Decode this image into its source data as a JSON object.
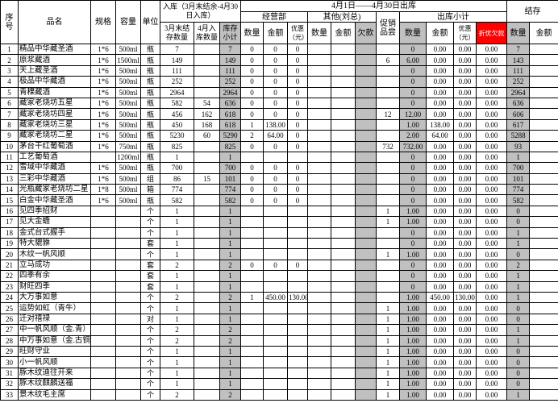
{
  "header": {
    "no": "序号",
    "name": "品名",
    "spec": "规格",
    "volume": "容量",
    "unit": "单位",
    "stock_in": "入库（3月末结余-4月30日入库）",
    "period": "4月1日——4月30日出库",
    "balance": "结存",
    "dept": "经营部",
    "other": "其他(刘总)",
    "promo": "促销品尝",
    "out_total": "出库小计",
    "march_end": "3月末结存数量",
    "april_in": "4月入库数量",
    "stock_total": "库存小计",
    "dept_qty": "数量",
    "dept_amount": "金额",
    "dept_discount": "优惠（元）",
    "other_qty": "数量",
    "other_amount": "金额",
    "debt": "欠款",
    "out_qty": "数量",
    "out_amount": "金额",
    "out_discount": "优惠（元）",
    "discount_debt": "折优欠款",
    "bal_qty": "数量",
    "bal_amount": "金额"
  },
  "table": {
    "rows": [
      [
        "1",
        "精品中华藏圣酒",
        "1*6",
        "500ml",
        "瓶",
        "7",
        null,
        "7",
        "0",
        "0",
        "0",
        null,
        null,
        null,
        null,
        "0",
        "0.00",
        "0.00",
        "0.00",
        "7",
        null
      ],
      [
        "2",
        "原浆藏酒",
        "1*6",
        "1500ml",
        "瓶",
        "149",
        null,
        "149",
        "0",
        "0",
        "0",
        null,
        null,
        null,
        "6",
        "6.00",
        "0.00",
        "0.00",
        "0.00",
        "143",
        null
      ],
      [
        "3",
        "天上藏圣酒",
        "1*6",
        "500ml",
        "瓶",
        "111",
        null,
        "111",
        "0",
        "0",
        "0",
        null,
        null,
        null,
        null,
        "0",
        "0.00",
        "0.00",
        "0.00",
        "111",
        null
      ],
      [
        "4",
        "极品中华藏酒",
        "1*6",
        "500ml",
        "瓶",
        "252",
        null,
        "252",
        "0",
        "0",
        "0",
        null,
        null,
        null,
        null,
        "0",
        "0.00",
        "0.00",
        "0.00",
        "252",
        null
      ],
      [
        "5",
        "青稞藏酒",
        "1*6",
        "500ml",
        "瓶",
        "2964",
        null,
        "2964",
        "0",
        "0",
        "0",
        null,
        null,
        null,
        null,
        "0",
        "0.00",
        "0.00",
        "0.00",
        "2964",
        null
      ],
      [
        "6",
        "藏家老烧坊五星",
        "1*6",
        "500ml",
        "瓶",
        "582",
        "54",
        "636",
        "0",
        "0",
        "0",
        null,
        null,
        null,
        null,
        "0",
        "0.00",
        "0.00",
        "0.00",
        "636",
        null
      ],
      [
        "7",
        "藏家老烧坊四星",
        "1*6",
        "500ml",
        "瓶",
        "456",
        "162",
        "618",
        "0",
        "0",
        "0",
        null,
        null,
        null,
        "12",
        "12.00",
        "0.00",
        "0.00",
        "0.00",
        "606",
        null
      ],
      [
        "8",
        "藏家老烧坊三星",
        "1*6",
        "500ml",
        "瓶",
        "450",
        "168",
        "618",
        "1",
        "138.00",
        "0",
        null,
        null,
        null,
        null,
        "1.00",
        "138.00",
        "0.00",
        "0.00",
        "617",
        null
      ],
      [
        "9",
        "藏家老烧坊二星",
        "1*6",
        "500ml",
        "瓶",
        "5230",
        "60",
        "5290",
        "2",
        "64.00",
        "0",
        null,
        null,
        null,
        null,
        "2.00",
        "64.00",
        "0.00",
        "0.00",
        "5288",
        null
      ],
      [
        "10",
        "茅台干红葡萄酒",
        "1*6",
        "750ml",
        "瓶",
        "825",
        null,
        "825",
        "0",
        "0",
        "0",
        null,
        null,
        null,
        "732",
        "732.00",
        "0.00",
        "0.00",
        "0.00",
        "93",
        null
      ],
      [
        "11",
        "工艺葡萄酒",
        null,
        "1200ml",
        "瓶",
        "1",
        null,
        "1",
        null,
        null,
        null,
        null,
        null,
        null,
        null,
        "0",
        "0.00",
        "0.00",
        "0.00",
        "1",
        null
      ],
      [
        "12",
        "雪域中华藏酒",
        "1*6",
        "500ml",
        "瓶",
        "700",
        null,
        "700",
        "0",
        "0",
        "0",
        null,
        null,
        null,
        null,
        "0",
        "0.00",
        "0.00",
        "0.00",
        "700",
        null
      ],
      [
        "13",
        "三彩中华藏酒",
        "1*6",
        "500ml",
        "组",
        "86",
        "15",
        "101",
        "0",
        "0",
        "0",
        null,
        null,
        null,
        null,
        "0",
        "0.00",
        "0.00",
        "0.00",
        "101",
        null
      ],
      [
        "14",
        "光瓶藏家老烧坊二星",
        "1*8",
        "500ml",
        "箱",
        "774",
        null,
        "774",
        "0",
        "0",
        "0",
        null,
        null,
        null,
        null,
        "0",
        "0.00",
        "0.00",
        "0.00",
        "774",
        null
      ],
      [
        "15",
        "白金中华藏圣酒",
        "1*6",
        "500ml",
        "瓶",
        "582",
        null,
        "582",
        "0",
        "0",
        "0",
        null,
        null,
        null,
        null,
        "0",
        "0.00",
        "0.00",
        "0.00",
        "582",
        null
      ],
      [
        "16",
        "见四季招财",
        null,
        null,
        "个",
        "1",
        null,
        "1",
        null,
        null,
        null,
        null,
        null,
        null,
        "1",
        "1.00",
        "0.00",
        "0.00",
        "0.00",
        "0",
        null
      ],
      [
        "17",
        "见大金蟾",
        null,
        null,
        "个",
        "1",
        null,
        "1",
        null,
        null,
        null,
        null,
        null,
        null,
        "1",
        "1.00",
        "0.00",
        "0.00",
        "0.00",
        "0",
        null
      ],
      [
        "18",
        "金式台式握手",
        null,
        null,
        "个",
        "1",
        null,
        "1",
        null,
        null,
        null,
        null,
        null,
        null,
        null,
        "0",
        "0.00",
        "0.00",
        "0.00",
        "1",
        null
      ],
      [
        "19",
        "特大貔貅",
        null,
        null,
        "套",
        "1",
        null,
        "1",
        null,
        null,
        null,
        null,
        null,
        null,
        null,
        "0",
        "0.00",
        "0.00",
        "0.00",
        "1",
        null
      ],
      [
        "20",
        "木纹一帆风顺",
        null,
        null,
        "个",
        "1",
        null,
        "1",
        null,
        null,
        null,
        null,
        null,
        null,
        "1",
        "1.00",
        "0.00",
        "0.00",
        "0.00",
        "0",
        null
      ],
      [
        "21",
        "立马成功",
        null,
        null,
        "套",
        "2",
        null,
        "2",
        "0",
        "0",
        "0",
        null,
        null,
        null,
        null,
        "0",
        "0.00",
        "0.00",
        "0.00",
        "2",
        null
      ],
      [
        "22",
        "四季有余",
        null,
        null,
        "套",
        "1",
        null,
        "1",
        null,
        null,
        null,
        null,
        null,
        null,
        null,
        "0",
        "0.00",
        "0.00",
        "0.00",
        "1",
        null
      ],
      [
        "23",
        "财旺四季",
        null,
        null,
        "套",
        "1",
        null,
        "1",
        null,
        null,
        null,
        null,
        null,
        null,
        null,
        "0",
        "0.00",
        "0.00",
        "0.00",
        "1",
        null
      ],
      [
        "24",
        "大万事如意",
        null,
        null,
        "个",
        "2",
        null,
        "2",
        "1",
        "450.00",
        "130.00",
        null,
        null,
        null,
        null,
        "1.00",
        "450.00",
        "130.00",
        "0.00",
        "1",
        null
      ],
      [
        "25",
        "运势如虹（青牛）",
        null,
        null,
        "个",
        "1",
        null,
        "1",
        null,
        null,
        null,
        null,
        null,
        null,
        "1",
        "1.00",
        "0.00",
        "0.00",
        "0.00",
        "0",
        null
      ],
      [
        "26",
        "迁对禧禄",
        null,
        null,
        "对",
        "1",
        null,
        "1",
        null,
        null,
        null,
        null,
        null,
        null,
        "1",
        "1.00",
        "0.00",
        "0.00",
        "0.00",
        "0",
        null
      ],
      [
        "27",
        "中一帆风顺（金.青）",
        null,
        null,
        "个",
        "2",
        null,
        "2",
        null,
        null,
        null,
        null,
        null,
        null,
        "1",
        "1.00",
        "0.00",
        "0.00",
        "0.00",
        "1",
        null
      ],
      [
        "28",
        "中万事如意（金.古铜）",
        null,
        null,
        "个",
        "2",
        null,
        "2",
        null,
        null,
        null,
        null,
        null,
        null,
        "1",
        "1.00",
        "0.00",
        "0.00",
        "0.00",
        "1",
        null
      ],
      [
        "29",
        "旺财守业",
        null,
        null,
        "个",
        "1",
        null,
        "1",
        null,
        null,
        null,
        null,
        null,
        null,
        "1",
        "1.00",
        "0.00",
        "0.00",
        "0.00",
        "0",
        null
      ],
      [
        "30",
        "小一帆风顺",
        null,
        null,
        "个",
        "1",
        null,
        "1",
        null,
        null,
        null,
        null,
        null,
        null,
        "1",
        "1.00",
        "0.00",
        "0.00",
        "0.00",
        "0",
        null
      ],
      [
        "31",
        "豚木纹迪往开来",
        null,
        null,
        "个",
        "1",
        null,
        "1",
        null,
        null,
        null,
        null,
        null,
        null,
        "1",
        "1.00",
        "0.00",
        "0.00",
        "0.00",
        "0",
        null
      ],
      [
        "32",
        "豚木纹麒麟送福",
        null,
        null,
        "个",
        "1",
        null,
        "1",
        null,
        null,
        null,
        null,
        null,
        null,
        "1",
        "1.00",
        "0.00",
        "0.00",
        "0.00",
        "0",
        null
      ],
      [
        "33",
        "景木纹毛主席",
        null,
        null,
        "个",
        "2",
        null,
        "2",
        null,
        null,
        null,
        null,
        null,
        null,
        "1",
        "1.00",
        "0.00",
        "0.00",
        "0.00",
        "1",
        null
      ]
    ]
  }
}
